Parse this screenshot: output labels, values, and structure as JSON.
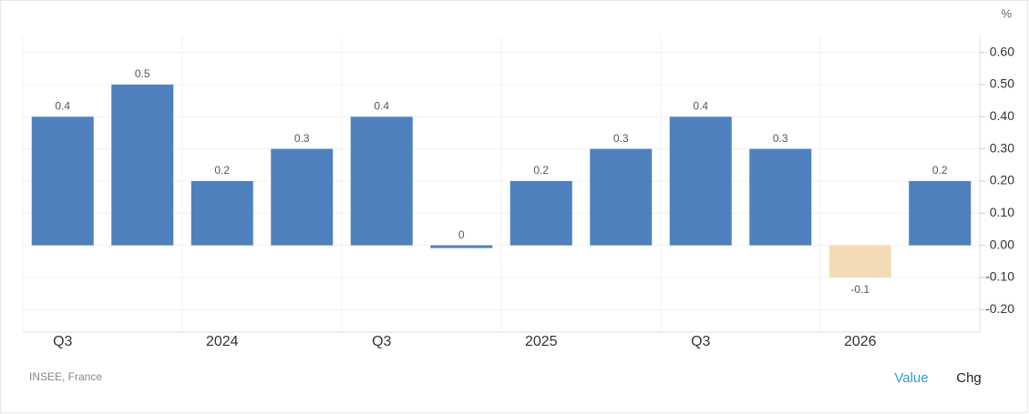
{
  "chart_data": {
    "type": "bar",
    "unit": "%",
    "source": "INSEE, France",
    "buttons": [
      "Value",
      "Chg"
    ],
    "categories": [
      "Q3",
      null,
      "2024",
      null,
      "Q3",
      null,
      "2025",
      null,
      "Q3",
      null,
      "2026",
      null
    ],
    "values": [
      0.4,
      0.5,
      0.2,
      0.3,
      0.4,
      0,
      0.2,
      0.3,
      0.4,
      0.3,
      -0.1,
      0.2
    ],
    "color": "#4e81bd",
    "negative_color": "#f3dbb5",
    "ylim": [
      -0.27,
      0.65
    ],
    "yticks": [
      {
        "value": 0.6,
        "label": "0.60"
      },
      {
        "value": 0.5,
        "label": "0.50"
      },
      {
        "value": 0.4,
        "label": "0.40"
      },
      {
        "value": 0.3,
        "label": "0.30"
      },
      {
        "value": 0.2,
        "label": "0.20"
      },
      {
        "value": 0.1,
        "label": "0.10"
      },
      {
        "value": 0,
        "label": "0.00"
      },
      {
        "value": -0.1,
        "label": "-0.10"
      },
      {
        "value": -0.2,
        "label": "-0.20"
      }
    ],
    "grid": true
  }
}
